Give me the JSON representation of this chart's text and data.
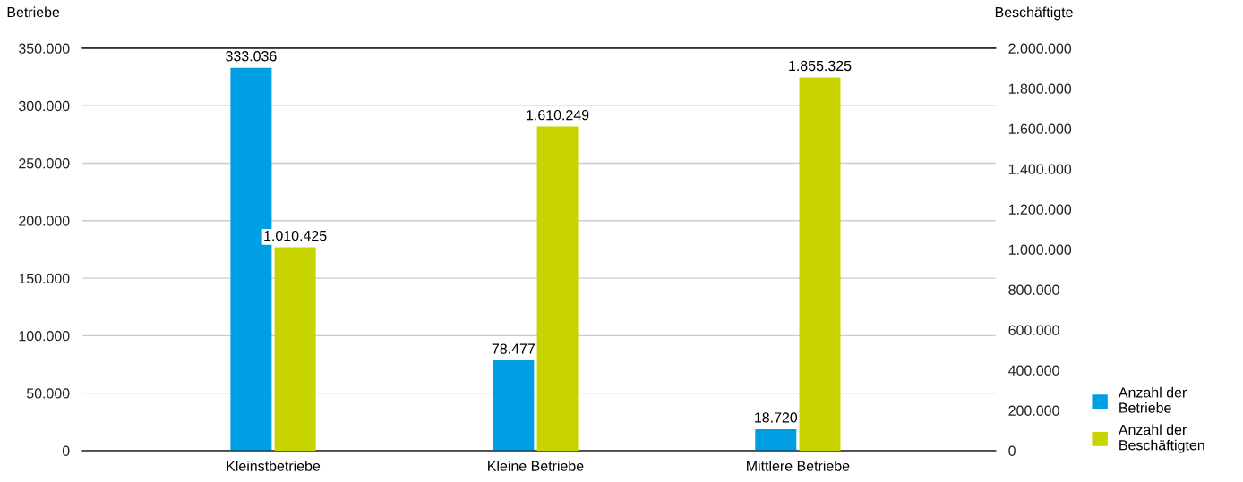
{
  "chart_data": {
    "type": "bar",
    "categories": [
      "Kleinstbetriebe",
      "Kleine Betriebe",
      "Mittlere Betriebe"
    ],
    "ylabel": "Betriebe",
    "y2label": "Beschäftigte",
    "series": [
      {
        "name": "Anzahl der\nBetriebe",
        "color": "#009fe3",
        "values": [
          333036,
          78477,
          18720
        ],
        "value_labels": [
          "333.036",
          "78.477",
          "18.720"
        ]
      },
      {
        "name": "Anzahl der\nBeschäftigten",
        "color": "#c8d400",
        "axis": "y2",
        "values": [
          1010425,
          1610249,
          1855325
        ],
        "value_labels": [
          "1.010.425",
          "1.610.249",
          "1.855.325"
        ]
      }
    ],
    "ylim": [
      0,
      350000
    ],
    "yticks": [
      0,
      {
        "value": 50000,
        "label": "50.000"
      },
      {
        "value": 100000,
        "label": "100.000"
      },
      {
        "value": 150000,
        "label": "150.000"
      },
      {
        "value": 200000,
        "label": "200.000"
      },
      {
        "value": 250000,
        "label": "250.000"
      },
      {
        "value": 300000,
        "label": "300.000"
      },
      {
        "value": 350000,
        "label": "350.000"
      }
    ],
    "y2lim": [
      0,
      2000000
    ],
    "y2ticks": [
      0,
      {
        "value": 200000,
        "label": "200.000"
      },
      {
        "value": 400000,
        "label": "400.000"
      },
      {
        "value": 600000,
        "label": "600.000"
      },
      {
        "value": 800000,
        "label": "800.000"
      },
      {
        "value": 1000000,
        "label": "1.000.000"
      },
      {
        "value": 1200000,
        "label": "1.200.000"
      },
      {
        "value": 1400000,
        "label": "1.400.000"
      },
      {
        "value": 1600000,
        "label": "1.600.000"
      },
      {
        "value": 1800000,
        "label": "1.800.000"
      },
      {
        "value": 2000000,
        "label": "2.000.000"
      }
    ],
    "grid": "y",
    "legend": "bottom right"
  }
}
